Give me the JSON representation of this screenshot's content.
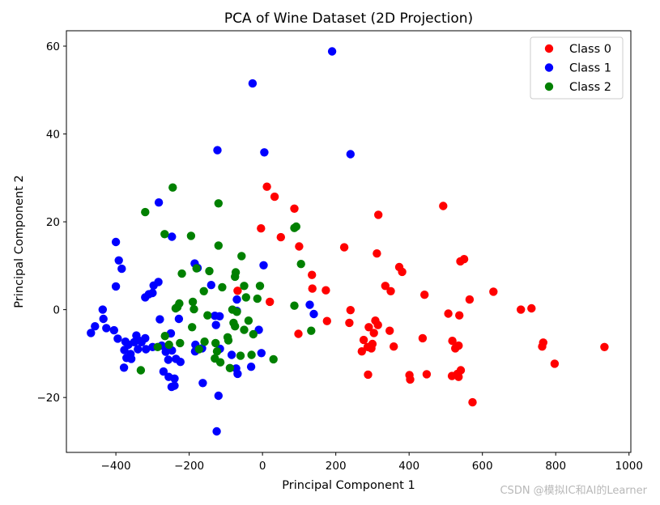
{
  "watermark": "CSDN @模拟IC和AI的Learner",
  "chart_data": {
    "type": "scatter",
    "title": "PCA of Wine Dataset (2D Projection)",
    "xlabel": "Principal Component 1",
    "ylabel": "Principal Component 2",
    "xlim": [
      -535,
      1005
    ],
    "ylim": [
      -32.5,
      63.5
    ],
    "xticks": [
      -400,
      -200,
      0,
      200,
      400,
      600,
      800,
      1000
    ],
    "yticks": [
      -20,
      0,
      20,
      40,
      60
    ],
    "xtick_labels": [
      "−400",
      "−200",
      "0",
      "200",
      "400",
      "600",
      "800",
      "1000"
    ],
    "ytick_labels": [
      "−20",
      "0",
      "20",
      "40",
      "60"
    ],
    "grid": false,
    "legend_position": "top-right",
    "series": [
      {
        "name": "Class 0",
        "color": "#ff0000",
        "points": [
          [
            12,
            28
          ],
          [
            33,
            25.7
          ],
          [
            87,
            23
          ],
          [
            -68,
            4.3
          ],
          [
            -4,
            18.5
          ],
          [
            20,
            1.8
          ],
          [
            50,
            16.5
          ],
          [
            100,
            14.4
          ],
          [
            98,
            -5.5
          ],
          [
            135,
            7.9
          ],
          [
            136,
            4.8
          ],
          [
            173,
            4.4
          ],
          [
            176,
            -2.6
          ],
          [
            223,
            14.2
          ],
          [
            316,
            21.6
          ],
          [
            493,
            23.6
          ],
          [
            540,
            11
          ],
          [
            550,
            11.5
          ],
          [
            312,
            12.8
          ],
          [
            373,
            9.7
          ],
          [
            381,
            8.6
          ],
          [
            335,
            5.4
          ],
          [
            350,
            4.2
          ],
          [
            442,
            3.4
          ],
          [
            240,
            -0.1
          ],
          [
            237,
            -3
          ],
          [
            308,
            -2.5
          ],
          [
            315,
            -3.5
          ],
          [
            290,
            -4
          ],
          [
            304,
            -5.3
          ],
          [
            276,
            -6.9
          ],
          [
            347,
            -4.8
          ],
          [
            300,
            -7.8
          ],
          [
            297,
            -8.8
          ],
          [
            287,
            -8.5
          ],
          [
            271,
            -9.5
          ],
          [
            358,
            -8.4
          ],
          [
            437,
            -6.5
          ],
          [
            288,
            -14.8
          ],
          [
            401,
            -14.9
          ],
          [
            403,
            -15.9
          ],
          [
            448,
            -14.7
          ],
          [
            518,
            -7.1
          ],
          [
            526,
            -8.8
          ],
          [
            535,
            -8.2
          ],
          [
            507,
            -0.9
          ],
          [
            537,
            -1.3
          ],
          [
            565,
            2.3
          ],
          [
            630,
            4.1
          ],
          [
            705,
            0
          ],
          [
            734,
            0.3
          ],
          [
            763,
            -8.4
          ],
          [
            766,
            -7.5
          ],
          [
            797,
            -12.3
          ],
          [
            933,
            -8.5
          ],
          [
            517,
            -15.1
          ],
          [
            532,
            -14.6
          ],
          [
            541,
            -13.8
          ],
          [
            535,
            -15.3
          ],
          [
            573,
            -21.1
          ]
        ]
      },
      {
        "name": "Class 1",
        "color": "#0000ff",
        "points": [
          [
            190,
            58.8
          ],
          [
            -27,
            51.5
          ],
          [
            240,
            35.4
          ],
          [
            -123,
            36.3
          ],
          [
            5,
            35.8
          ],
          [
            -283,
            24.4
          ],
          [
            -247,
            16.6
          ],
          [
            -400,
            15.4
          ],
          [
            -392,
            11.2
          ],
          [
            -384,
            9.3
          ],
          [
            -185,
            10.5
          ],
          [
            -177,
            9.5
          ],
          [
            -140,
            5.6
          ],
          [
            -70,
            2.3
          ],
          [
            -400,
            5.3
          ],
          [
            -284,
            6.3
          ],
          [
            -297,
            5.5
          ],
          [
            -300,
            3.8
          ],
          [
            -310,
            3.5
          ],
          [
            -320,
            2.8
          ],
          [
            3,
            10.1
          ],
          [
            -70,
            -0.3
          ],
          [
            -117,
            -1.5
          ],
          [
            -436,
            0
          ],
          [
            -434,
            -2.1
          ],
          [
            -426,
            -4.2
          ],
          [
            -405,
            -4.7
          ],
          [
            -468,
            -5.3
          ],
          [
            -457,
            -3.8
          ],
          [
            -395,
            -6.6
          ],
          [
            -374,
            -7.3
          ],
          [
            -366,
            -8
          ],
          [
            -350,
            -7.4
          ],
          [
            -340,
            -6.9
          ],
          [
            -344,
            -5.9
          ],
          [
            -320,
            -6.5
          ],
          [
            -330,
            -7.4
          ],
          [
            -280,
            -2.2
          ],
          [
            -250,
            -5.4
          ],
          [
            -228,
            -2.1
          ],
          [
            -256,
            -8.4
          ],
          [
            -247,
            -9.3
          ],
          [
            -264,
            -9.6
          ],
          [
            -275,
            -8.2
          ],
          [
            -318,
            -9
          ],
          [
            -340,
            -9
          ],
          [
            -377,
            -9.2
          ],
          [
            -360,
            -10.1
          ],
          [
            -371,
            -11
          ],
          [
            -358,
            -11.2
          ],
          [
            -378,
            -13.2
          ],
          [
            -300,
            -8.5
          ],
          [
            -257,
            -11.4
          ],
          [
            -236,
            -11.2
          ],
          [
            -224,
            -11.9
          ],
          [
            -270,
            -14.1
          ],
          [
            -256,
            -15.3
          ],
          [
            -240,
            -15.7
          ],
          [
            -248,
            -17.6
          ],
          [
            -240,
            -17.3
          ],
          [
            -183,
            -8
          ],
          [
            -184,
            -9.5
          ],
          [
            -165,
            -8.8
          ],
          [
            -116,
            -8.9
          ],
          [
            -84,
            -10.3
          ],
          [
            -72,
            -13.4
          ],
          [
            -68,
            -14.6
          ],
          [
            -31,
            -13
          ],
          [
            -10,
            -4.6
          ],
          [
            -3,
            -9.9
          ],
          [
            -163,
            -16.7
          ],
          [
            -120,
            -19.6
          ],
          [
            -125,
            -27.7
          ],
          [
            -130,
            -1.4
          ],
          [
            -127,
            -3.5
          ],
          [
            129,
            1.1
          ],
          [
            140,
            -1
          ]
        ]
      },
      {
        "name": "Class 2",
        "color": "#008000",
        "points": [
          [
            -245,
            27.8
          ],
          [
            -320,
            22.2
          ],
          [
            -120,
            24.2
          ],
          [
            -267,
            17.2
          ],
          [
            -195,
            16.8
          ],
          [
            -120,
            14.6
          ],
          [
            -57,
            12.2
          ],
          [
            -220,
            8.2
          ],
          [
            -180,
            9.4
          ],
          [
            -145,
            8.8
          ],
          [
            -75,
            7.5
          ],
          [
            -73,
            8.5
          ],
          [
            -110,
            5.1
          ],
          [
            -50,
            5.4
          ],
          [
            -7,
            5.4
          ],
          [
            -14,
            2.5
          ],
          [
            -45,
            2.8
          ],
          [
            -160,
            4.2
          ],
          [
            -190,
            1.8
          ],
          [
            -227,
            1.4
          ],
          [
            -237,
            0.3
          ],
          [
            -232,
            0.6
          ],
          [
            -187,
            0.1
          ],
          [
            -150,
            -1.3
          ],
          [
            -82,
            0
          ],
          [
            -70,
            -0.5
          ],
          [
            -79,
            -3
          ],
          [
            -75,
            -3.8
          ],
          [
            -50,
            -4.6
          ],
          [
            -25,
            -5.6
          ],
          [
            -38,
            -2.5
          ],
          [
            87,
            0.9
          ],
          [
            92,
            18.9
          ],
          [
            87,
            18.6
          ],
          [
            105,
            10.4
          ],
          [
            133,
            -4.8
          ],
          [
            -192,
            -4
          ],
          [
            -225,
            -7.6
          ],
          [
            -266,
            -6
          ],
          [
            -255,
            -8
          ],
          [
            -286,
            -8.5
          ],
          [
            -173,
            -9
          ],
          [
            -158,
            -7.3
          ],
          [
            -128,
            -7.6
          ],
          [
            -124,
            -9.5
          ],
          [
            -95,
            -6.3
          ],
          [
            -93,
            -7
          ],
          [
            -115,
            -12
          ],
          [
            -89,
            -13.3
          ],
          [
            -60,
            -10.5
          ],
          [
            -30,
            -10.3
          ],
          [
            -130,
            -11.1
          ],
          [
            30,
            -11.3
          ],
          [
            -332,
            -13.8
          ]
        ]
      }
    ]
  }
}
